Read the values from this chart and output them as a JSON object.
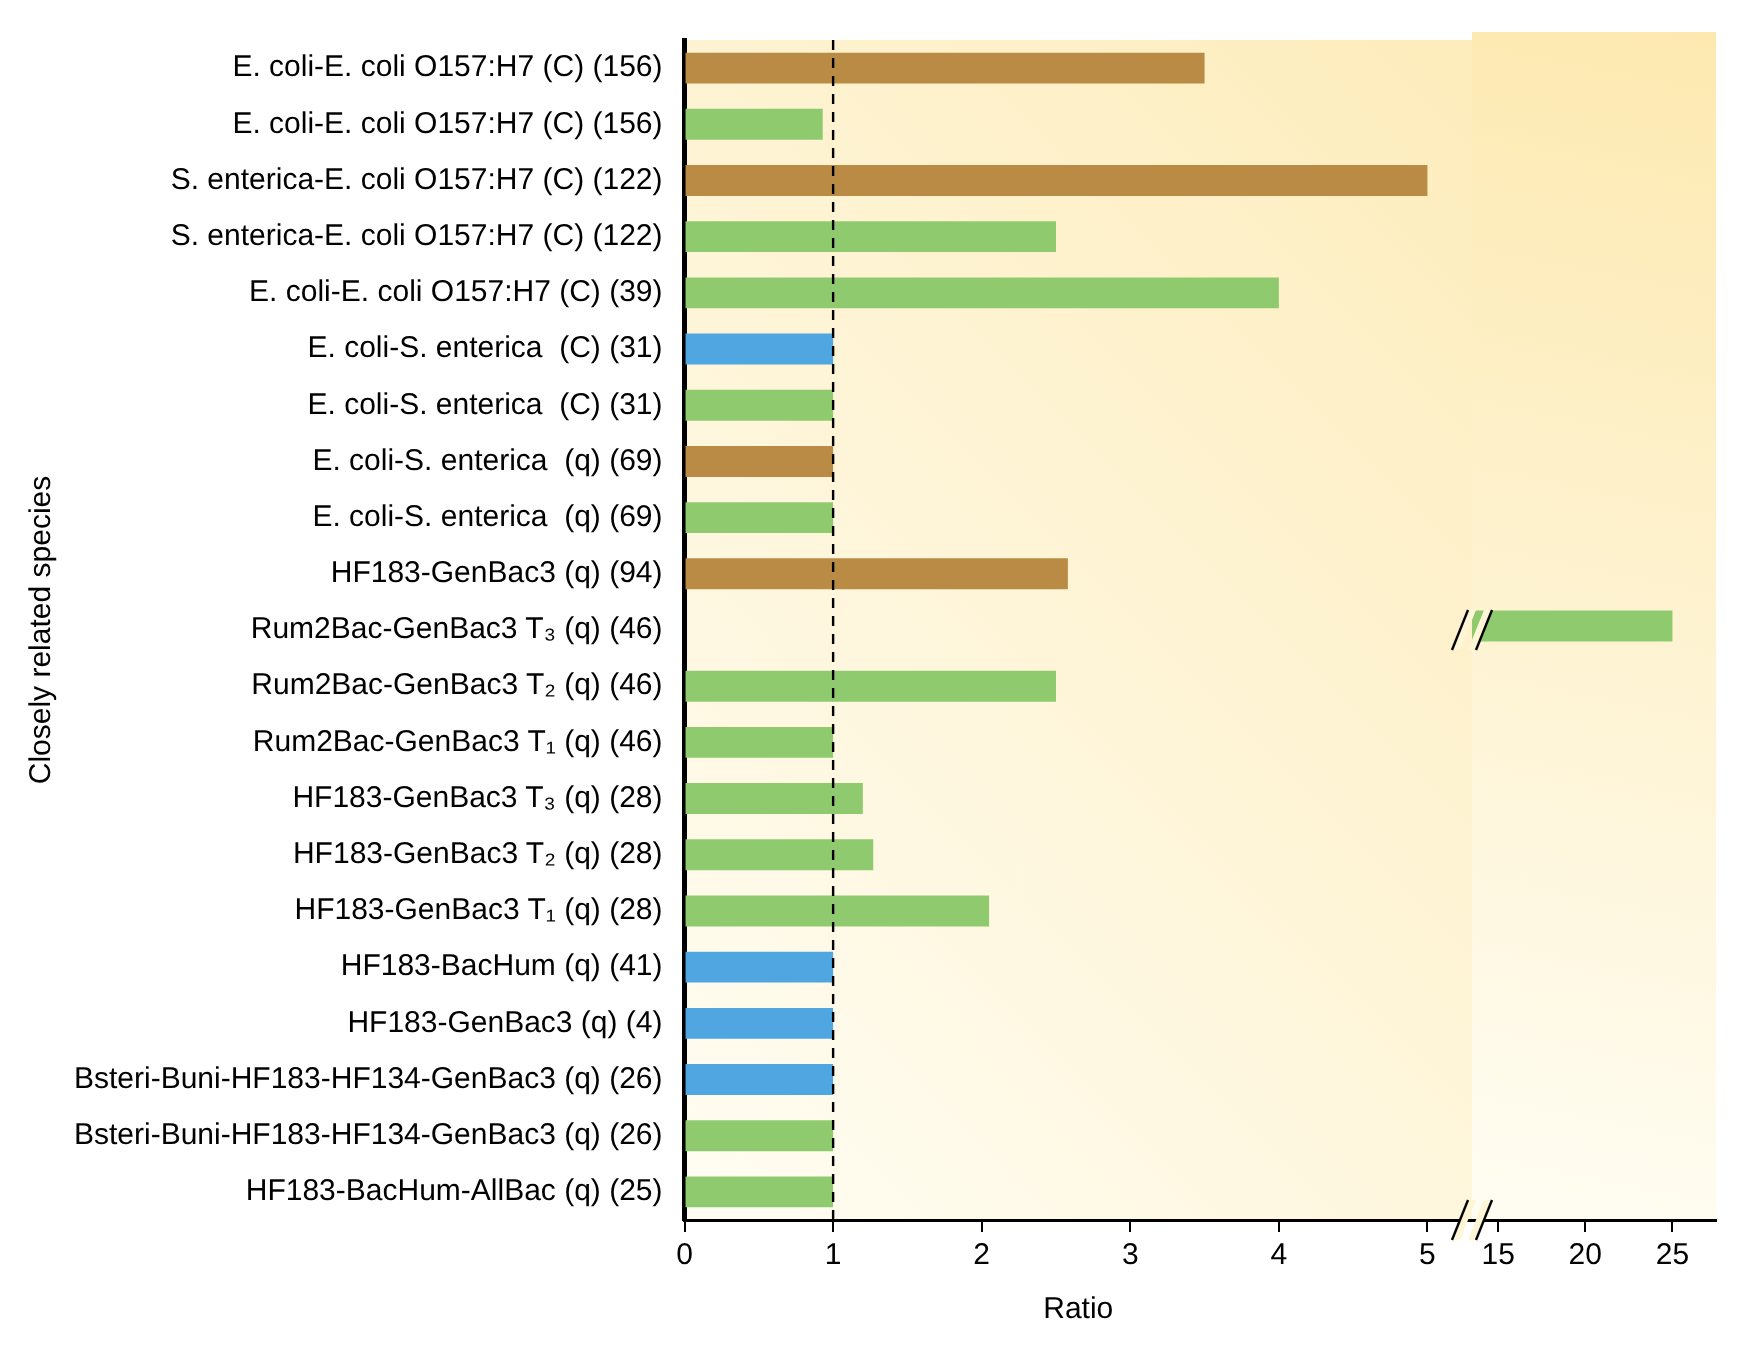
{
  "chart_data": [
    {
      "type": "bar",
      "orientation": "horizontal",
      "xlabel": "Ratio",
      "ylabel": "Closely related species",
      "categories": [
        "E. coli-E. coli O157:H7 (C) (156)",
        "E. coli-E. coli O157:H7 (C) (156)",
        "S. enterica-E. coli O157:H7 (C) (122)",
        "S. enterica-E. coli O157:H7 (C) (122)",
        "E. coli-E. coli O157:H7 (C) (39)",
        "E. coli-S. enterica  (C) (31)",
        "E. coli-S. enterica  (C) (31)",
        "E. coli-S. enterica  (q) (69)",
        "E. coli-S. enterica  (q) (69)",
        "HF183-GenBac3 (q) (94)",
        "Rum2Bac-GenBac3 T₃ (q) (46)",
        "Rum2Bac-GenBac3 T₂ (q) (46)",
        "Rum2Bac-GenBac3 T₁ (q) (46)",
        "HF183-GenBac3 T₃ (q) (28)",
        "HF183-GenBac3 T₂ (q) (28)",
        "HF183-GenBac3 T₁ (q) (28)",
        "HF183-BacHum (q) (41)",
        "HF183-GenBac3 (q) (4)",
        "Bsteri-Buni-HF183-HF134-GenBac3 (q) (26)",
        "Bsteri-Buni-HF183-HF134-GenBac3 (q) (26)",
        "HF183-BacHum-AllBac (q) (25)"
      ],
      "values": [
        3.5,
        0.93,
        5.0,
        2.5,
        4.0,
        1.0,
        1.0,
        1.0,
        1.0,
        2.58,
        null,
        2.5,
        1.0,
        1.2,
        1.27,
        2.05,
        1.0,
        1.0,
        1.0,
        1.0,
        1.0
      ],
      "colors": [
        "#b98b45",
        "#8fcb6e",
        "#b98b45",
        "#8fcb6e",
        "#8fcb6e",
        "#4fa6e0",
        "#8fcb6e",
        "#b98b45",
        "#8fcb6e",
        "#b98b45",
        "#8fcb6e",
        "#8fcb6e",
        "#8fcb6e",
        "#8fcb6e",
        "#8fcb6e",
        "#8fcb6e",
        "#4fa6e0",
        "#4fa6e0",
        "#4fa6e0",
        "#8fcb6e",
        "#8fcb6e"
      ],
      "xlim": [
        0,
        5.3
      ],
      "xticks": [
        0,
        1,
        2,
        3,
        4,
        5
      ],
      "ref_lines": [
        {
          "axis": "x",
          "value": 1,
          "color": "#000000",
          "line_style": "dashed"
        }
      ],
      "grid": false,
      "legend": false
    },
    {
      "type": "bar",
      "orientation": "horizontal",
      "tick_labels": "x",
      "categories": [
        null,
        null,
        null,
        null,
        null,
        null,
        null,
        null,
        null,
        null,
        null,
        null,
        null,
        null,
        null,
        null,
        null,
        null,
        null,
        null,
        null
      ],
      "values": [
        null,
        null,
        null,
        null,
        null,
        null,
        null,
        null,
        null,
        null,
        25,
        null,
        null,
        null,
        null,
        null,
        null,
        null,
        null,
        null,
        null
      ],
      "colors": [
        "#b98b45",
        "#8fcb6e",
        "#b98b45",
        "#8fcb6e",
        "#8fcb6e",
        "#4fa6e0",
        "#8fcb6e",
        "#b98b45",
        "#8fcb6e",
        "#b98b45",
        "#8fcb6e",
        "#8fcb6e",
        "#8fcb6e",
        "#8fcb6e",
        "#8fcb6e",
        "#8fcb6e",
        "#4fa6e0",
        "#4fa6e0",
        "#4fa6e0",
        "#8fcb6e",
        "#8fcb6e"
      ],
      "xlim": [
        13.5,
        27.5
      ],
      "xticks": [
        15,
        20,
        25
      ],
      "grid": false,
      "legend": false
    }
  ]
}
